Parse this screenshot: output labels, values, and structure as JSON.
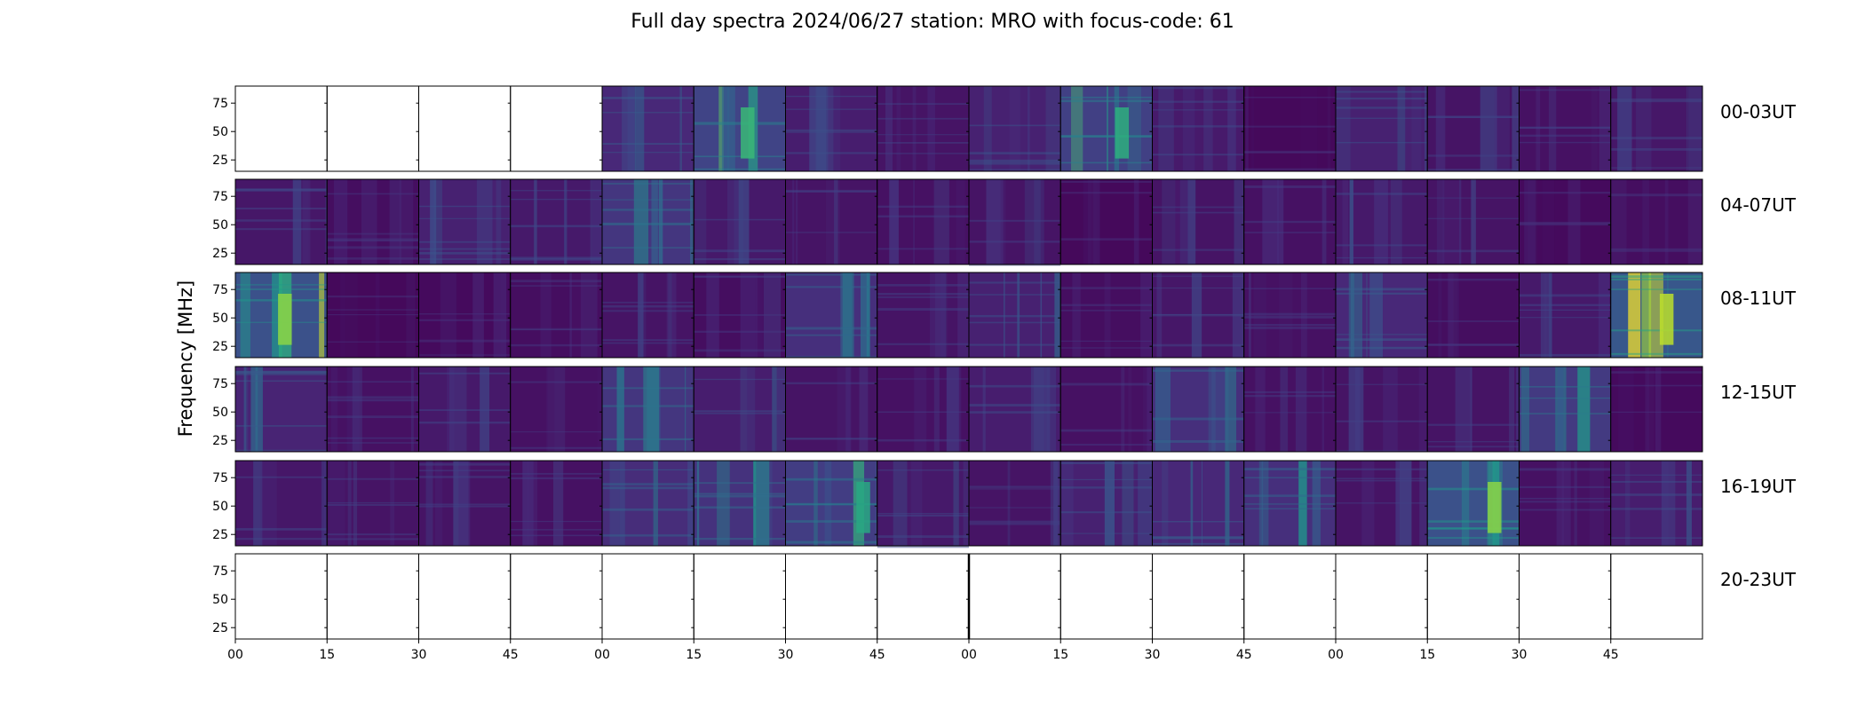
{
  "chart_data": {
    "type": "heatmap",
    "title": "Full day spectra 2024/06/27 station: MRO with focus-code: 61",
    "ylabel": "Frequency [MHz]",
    "xlabel": "",
    "yticks": [
      25,
      50,
      75
    ],
    "ylim": [
      15,
      90
    ],
    "xticks": [
      "00",
      "15",
      "30",
      "45",
      "00",
      "15",
      "30",
      "45",
      "00",
      "15",
      "30",
      "45",
      "00",
      "15",
      "30",
      "45"
    ],
    "colormap": "viridis",
    "rows": [
      {
        "label": "00-03UT",
        "intensity": [
          null,
          null,
          null,
          null,
          0.25,
          0.45,
          0.18,
          0.12,
          0.2,
          0.42,
          0.16,
          0.05,
          0.2,
          0.12,
          0.1,
          0.14
        ]
      },
      {
        "label": "04-07UT",
        "intensity": [
          0.14,
          0.08,
          0.2,
          0.15,
          0.35,
          0.15,
          0.12,
          0.1,
          0.12,
          0.05,
          0.12,
          0.1,
          0.15,
          0.12,
          0.06,
          0.08
        ]
      },
      {
        "label": "08-11UT",
        "intensity": [
          0.55,
          0.05,
          0.06,
          0.08,
          0.12,
          0.08,
          0.3,
          0.12,
          0.2,
          0.08,
          0.14,
          0.1,
          0.25,
          0.08,
          0.15,
          0.6
        ]
      },
      {
        "label": "12-15UT",
        "intensity": [
          0.22,
          0.1,
          0.15,
          0.1,
          0.35,
          0.18,
          0.12,
          0.1,
          0.18,
          0.1,
          0.3,
          0.1,
          0.12,
          0.12,
          0.38,
          0.06
        ]
      },
      {
        "label": "16-19UT",
        "intensity": [
          0.14,
          0.12,
          0.12,
          0.1,
          0.28,
          0.32,
          0.4,
          0.15,
          0.12,
          0.2,
          0.25,
          0.3,
          0.12,
          0.55,
          0.1,
          0.18
        ]
      },
      {
        "label": "20-23UT",
        "intensity": [
          null,
          null,
          null,
          null,
          null,
          null,
          null,
          null,
          null,
          null,
          null,
          null,
          null,
          null,
          null,
          null
        ]
      }
    ]
  }
}
